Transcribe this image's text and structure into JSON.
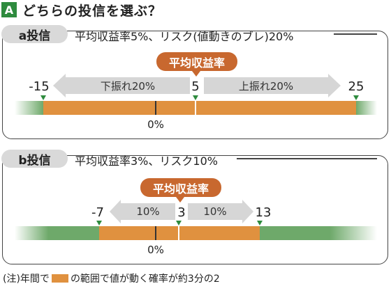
{
  "title": {
    "badge": "A",
    "text": "どちらの投信を選ぶ？"
  },
  "panel_a": {
    "label": "a投信",
    "summary": "平均収益率5%、リスク(値動きのブレ)20%",
    "avg_label": "平均収益率",
    "low": "-15",
    "mean": "5",
    "high": "25",
    "down_label": "下振れ20%",
    "up_label": "上振れ20%",
    "zero": "0%"
  },
  "panel_b": {
    "label": "b投信",
    "summary": "平均収益率3%、リスク10%",
    "avg_label": "平均収益率",
    "low": "-7",
    "mean": "3",
    "high": "13",
    "down_label": "10%",
    "up_label": "10%",
    "zero": "0%"
  },
  "footnote": {
    "prefix": "(注)年間で",
    "suffix": "の範囲で値が動く確率が約3分の2"
  },
  "colors": {
    "accent": "#c8682f",
    "range": "#e0913f",
    "outside": "#6ea96a",
    "arrow": "#d6d6d6"
  }
}
